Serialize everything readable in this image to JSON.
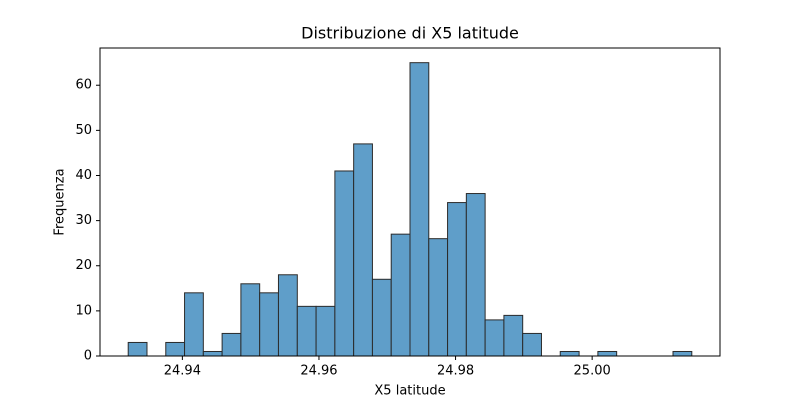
{
  "chart_data": {
    "type": "histogram",
    "title": "Distribuzione di X5 latitude",
    "x_label": "X5 latitude",
    "y_label": "Frequenza",
    "bins": [
      24.93207,
      24.93482,
      24.93757,
      24.94032,
      24.94307,
      24.94582,
      24.94857,
      24.95132,
      24.95407,
      24.95683,
      24.95958,
      24.96233,
      24.96508,
      24.96783,
      24.97058,
      24.97333,
      24.97608,
      24.97883,
      24.98158,
      24.98433,
      24.98708,
      24.98983,
      24.99258,
      24.99533,
      24.99809,
      25.00084,
      25.00359,
      25.00634,
      25.00909,
      25.01184,
      25.01459
    ],
    "values": [
      3,
      0,
      3,
      14,
      1,
      5,
      16,
      14,
      18,
      11,
      11,
      41,
      47,
      17,
      27,
      65,
      26,
      34,
      36,
      8,
      9,
      5,
      0,
      1,
      0,
      1,
      0,
      0,
      0,
      1
    ],
    "color": "#5f9ec9",
    "edgecolor": "#2b2b2b",
    "xlim": [
      24.92794,
      25.01872
    ],
    "xticks": [
      24.94,
      24.96,
      24.98,
      {
        "value": 25.0,
        "label": "25.00"
      }
    ],
    "ylim": [
      0,
      68.25
    ],
    "yticks": [
      0,
      10,
      20,
      30,
      40,
      50,
      60
    ],
    "grid": false
  }
}
